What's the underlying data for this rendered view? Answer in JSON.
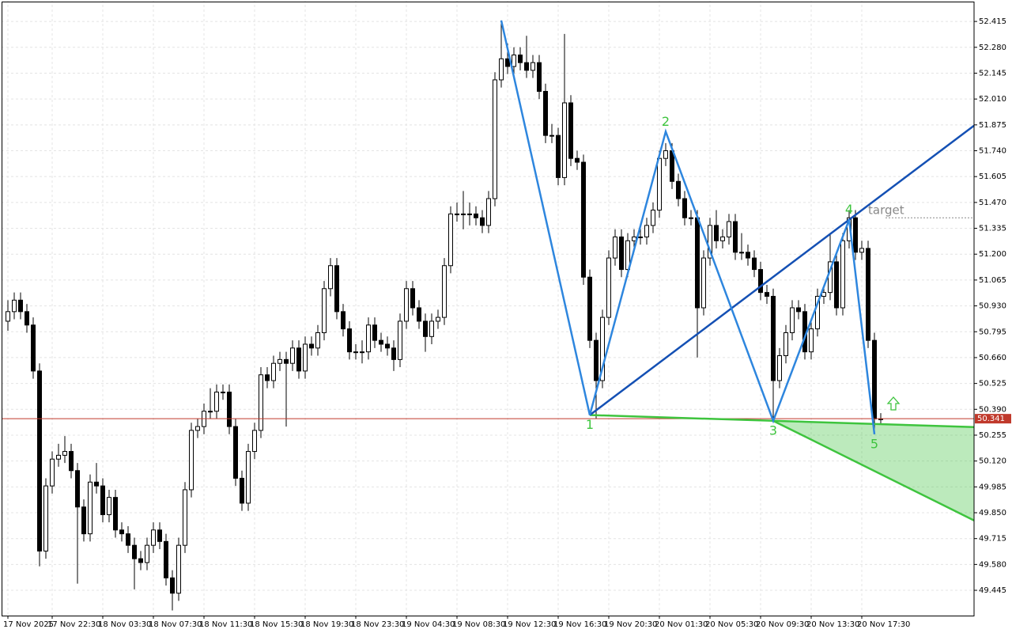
{
  "chart_data": {
    "type": "candlestick",
    "categories": [
      "17 Nov 2025",
      null,
      null,
      null,
      null,
      null,
      null,
      "17 Nov 22:30",
      null,
      null,
      null,
      null,
      null,
      null,
      null,
      "18 Nov 03:30",
      null,
      null,
      null,
      null,
      null,
      null,
      null,
      "18 Nov 07:30",
      null,
      null,
      null,
      null,
      null,
      null,
      null,
      "18 Nov 11:30",
      null,
      null,
      null,
      null,
      null,
      null,
      null,
      "18 Nov 15:30",
      null,
      null,
      null,
      null,
      null,
      null,
      null,
      "18 Nov 19:30",
      null,
      null,
      null,
      null,
      null,
      null,
      null,
      "18 Nov 23:30",
      null,
      null,
      null,
      null,
      null,
      null,
      null,
      "19 Nov 04:30",
      null,
      null,
      null,
      null,
      null,
      null,
      null,
      "19 Nov 08:30",
      null,
      null,
      null,
      null,
      null,
      null,
      null,
      "19 Nov 12:30",
      null,
      null,
      null,
      null,
      null,
      null,
      null,
      "19 Nov 16:30",
      null,
      null,
      null,
      null,
      null,
      null,
      null,
      "19 Nov 20:30",
      null,
      null,
      null,
      null,
      null,
      null,
      null,
      "20 Nov 01:30",
      null,
      null,
      null,
      null,
      null,
      null,
      null,
      "20 Nov 05:30",
      null,
      null,
      null,
      null,
      null,
      null,
      null,
      "20 Nov 09:30",
      null,
      null,
      null,
      null,
      null,
      null,
      null,
      "20 Nov 13:30",
      null,
      null,
      null,
      null,
      null,
      null,
      null,
      "20 Nov 17:30",
      null,
      null,
      null
    ],
    "open": [
      50.85,
      50.9,
      50.96,
      50.9,
      50.83,
      50.59,
      49.65,
      49.99,
      50.13,
      50.15,
      50.17,
      50.07,
      49.88,
      49.74,
      50.01,
      49.99,
      49.84,
      49.93,
      49.76,
      49.74,
      49.68,
      49.61,
      49.59,
      49.68,
      49.76,
      49.7,
      49.51,
      49.43,
      49.68,
      49.97,
      50.28,
      50.3,
      50.38,
      50.38,
      50.48,
      50.48,
      50.3,
      50.03,
      49.9,
      50.17,
      50.28,
      50.57,
      50.54,
      50.63,
      50.65,
      50.63,
      50.71,
      50.59,
      50.73,
      50.71,
      50.79,
      51.02,
      51.14,
      50.9,
      50.81,
      50.69,
      50.69,
      50.69,
      50.83,
      50.75,
      50.73,
      50.71,
      50.65,
      50.85,
      51.02,
      50.92,
      50.85,
      50.77,
      50.85,
      50.87,
      51.14,
      51.41,
      51.41,
      51.41,
      51.41,
      51.39,
      51.35,
      51.49,
      52.11,
      52.22,
      52.18,
      52.24,
      52.2,
      52.16,
      52.2,
      52.05,
      51.82,
      51.82,
      51.6,
      51.99,
      51.7,
      51.68,
      51.08,
      50.75,
      50.54,
      50.87,
      51.18,
      51.29,
      51.12,
      51.27,
      51.29,
      51.29,
      51.35,
      51.43,
      51.7,
      51.74,
      51.58,
      51.49,
      51.39,
      51.39,
      50.92,
      51.18,
      51.35,
      51.27,
      51.29,
      51.37,
      51.21,
      51.21,
      51.18,
      51.12,
      51.0,
      50.98,
      50.54,
      50.67,
      50.79,
      50.92,
      50.9,
      50.69,
      50.81,
      50.98,
      51.0,
      51.16,
      50.92,
      51.27,
      51.39,
      51.21,
      51.23,
      50.75,
      50.34
    ],
    "high": [
      50.96,
      51.0,
      51.0,
      50.94,
      50.87,
      50.63,
      50.03,
      50.17,
      50.21,
      50.25,
      50.21,
      50.11,
      49.92,
      50.05,
      50.11,
      50.03,
      49.97,
      49.97,
      49.8,
      49.78,
      49.72,
      49.65,
      49.72,
      49.8,
      49.8,
      49.74,
      49.55,
      49.72,
      50.01,
      50.32,
      50.34,
      50.42,
      50.5,
      50.52,
      50.52,
      50.52,
      50.34,
      50.07,
      50.21,
      50.32,
      50.61,
      50.61,
      50.67,
      50.69,
      50.69,
      50.75,
      50.75,
      50.77,
      50.77,
      50.83,
      51.06,
      51.18,
      51.18,
      50.94,
      50.85,
      50.73,
      50.75,
      50.87,
      50.87,
      50.79,
      50.77,
      50.75,
      50.89,
      51.06,
      51.06,
      50.96,
      50.89,
      50.89,
      50.91,
      51.18,
      51.45,
      51.47,
      51.53,
      51.47,
      51.45,
      51.43,
      51.53,
      52.15,
      52.42,
      52.3,
      52.28,
      52.28,
      52.34,
      52.24,
      52.24,
      52.09,
      51.88,
      51.86,
      52.35,
      52.03,
      51.74,
      51.72,
      51.12,
      50.79,
      50.91,
      51.22,
      51.33,
      51.33,
      51.31,
      51.33,
      51.35,
      51.39,
      51.47,
      51.74,
      51.78,
      51.78,
      51.62,
      51.53,
      51.43,
      51.43,
      51.22,
      51.39,
      51.43,
      51.33,
      51.41,
      51.41,
      51.31,
      51.25,
      51.22,
      51.16,
      51.04,
      51.02,
      50.71,
      50.83,
      50.96,
      50.96,
      50.94,
      50.85,
      51.02,
      51.04,
      51.3,
      51.2,
      51.31,
      51.43,
      51.43,
      51.27,
      51.27,
      50.79,
      50.37
    ],
    "low": [
      50.8,
      50.86,
      50.86,
      50.79,
      50.55,
      49.57,
      49.61,
      49.95,
      50.09,
      50.11,
      50.03,
      49.48,
      49.7,
      49.7,
      49.95,
      49.8,
      49.8,
      49.72,
      49.7,
      49.64,
      49.45,
      49.55,
      49.55,
      49.64,
      49.66,
      49.47,
      49.34,
      49.39,
      49.64,
      49.93,
      50.24,
      50.26,
      50.34,
      50.34,
      50.44,
      50.26,
      49.99,
      49.86,
      49.86,
      50.13,
      50.24,
      50.5,
      50.5,
      50.59,
      50.3,
      50.59,
      50.55,
      50.55,
      50.67,
      50.67,
      50.75,
      50.98,
      50.86,
      50.77,
      50.65,
      50.65,
      50.63,
      50.65,
      50.71,
      50.69,
      50.67,
      50.59,
      50.61,
      50.81,
      50.88,
      50.81,
      50.69,
      50.73,
      50.81,
      50.83,
      51.1,
      51.37,
      51.33,
      51.35,
      51.35,
      51.31,
      51.31,
      51.45,
      52.07,
      52.14,
      52.14,
      52.16,
      52.12,
      52.12,
      52.01,
      51.78,
      51.78,
      51.56,
      51.56,
      51.66,
      51.64,
      51.04,
      50.71,
      50.34,
      50.5,
      50.83,
      51.14,
      51.08,
      51.08,
      51.23,
      51.25,
      51.25,
      51.31,
      51.39,
      51.66,
      51.54,
      51.45,
      51.35,
      51.35,
      50.66,
      50.88,
      51.14,
      51.23,
      51.23,
      51.25,
      51.17,
      51.17,
      51.14,
      51.08,
      50.96,
      50.94,
      50.32,
      50.5,
      50.63,
      50.75,
      50.86,
      50.65,
      50.65,
      50.77,
      50.94,
      50.96,
      50.88,
      50.88,
      51.23,
      51.17,
      51.17,
      50.71,
      50.26,
      50.31
    ],
    "close": [
      50.9,
      50.96,
      50.9,
      50.83,
      50.59,
      49.65,
      49.99,
      50.13,
      50.15,
      50.17,
      50.07,
      49.88,
      49.74,
      50.01,
      49.99,
      49.84,
      49.93,
      49.76,
      49.74,
      49.68,
      49.61,
      49.59,
      49.68,
      49.76,
      49.7,
      49.51,
      49.43,
      49.68,
      49.97,
      50.28,
      50.3,
      50.38,
      50.38,
      50.48,
      50.48,
      50.3,
      50.03,
      49.9,
      50.17,
      50.28,
      50.57,
      50.54,
      50.63,
      50.65,
      50.63,
      50.71,
      50.59,
      50.73,
      50.71,
      50.79,
      51.02,
      51.14,
      50.9,
      50.81,
      50.69,
      50.69,
      50.69,
      50.83,
      50.75,
      50.73,
      50.71,
      50.65,
      50.85,
      51.02,
      50.92,
      50.85,
      50.77,
      50.85,
      50.87,
      51.14,
      51.41,
      51.41,
      51.41,
      51.41,
      51.39,
      51.35,
      51.49,
      52.11,
      52.22,
      52.18,
      52.24,
      52.2,
      52.16,
      52.2,
      52.05,
      51.82,
      51.82,
      51.6,
      51.99,
      51.7,
      51.68,
      51.08,
      50.75,
      50.54,
      50.87,
      51.18,
      51.29,
      51.12,
      51.27,
      51.29,
      51.29,
      51.35,
      51.43,
      51.7,
      51.74,
      51.58,
      51.49,
      51.39,
      51.39,
      50.92,
      51.18,
      51.35,
      51.27,
      51.29,
      51.37,
      51.21,
      51.21,
      51.18,
      51.12,
      51.0,
      50.98,
      50.54,
      50.67,
      50.79,
      50.92,
      50.9,
      50.69,
      50.81,
      50.98,
      51.0,
      51.16,
      50.92,
      51.27,
      51.39,
      51.21,
      51.23,
      50.75,
      50.34,
      50.34
    ],
    "up_color": "#ffffff",
    "down_color": "#000000",
    "outline_color": "#000000",
    "ylim": [
      49.313,
      52.527
    ],
    "yticks": [
      {
        "value": 49.445,
        "label": "49.445"
      },
      {
        "value": 49.58,
        "label": "49.580"
      },
      {
        "value": 49.715,
        "label": "49.715"
      },
      {
        "value": 49.85,
        "label": "49.850"
      },
      {
        "value": 49.985,
        "label": "49.985"
      },
      {
        "value": 50.12,
        "label": "50.120"
      },
      {
        "value": 50.255,
        "label": "50.255"
      },
      {
        "value": 50.39,
        "label": "50.390"
      },
      {
        "value": 50.525,
        "label": "50.525"
      },
      {
        "value": 50.66,
        "label": "50.660"
      },
      {
        "value": 50.795,
        "label": "50.795"
      },
      {
        "value": 50.93,
        "label": "50.930"
      },
      {
        "value": 51.065,
        "label": "51.065"
      },
      {
        "value": 51.2,
        "label": "51.200"
      },
      {
        "value": 51.335,
        "label": "51.335"
      },
      {
        "value": 51.47,
        "label": "51.470"
      },
      {
        "value": 51.605,
        "label": "51.605"
      },
      {
        "value": 51.74,
        "label": "51.740"
      },
      {
        "value": 51.875,
        "label": "51.875"
      },
      {
        "value": 52.01,
        "label": "52.010"
      },
      {
        "value": 52.145,
        "label": "52.145"
      },
      {
        "value": 52.28,
        "label": "52.280"
      },
      {
        "value": 52.415,
        "label": "52.415"
      }
    ],
    "grid": true,
    "current_price": 50.341,
    "current_price_color": "#c0392b",
    "wave_labels": [
      null,
      "1",
      "2",
      "3",
      "4",
      "5"
    ],
    "wave_values": [
      52.42,
      50.36,
      51.84,
      50.33,
      51.38,
      50.26
    ],
    "wave_color": "#2e86de",
    "trend_color": "#1450b4",
    "zone_color": "#3ec43e",
    "zone_lower_end": 49.81,
    "target_label": "target",
    "target_value": 51.39
  }
}
